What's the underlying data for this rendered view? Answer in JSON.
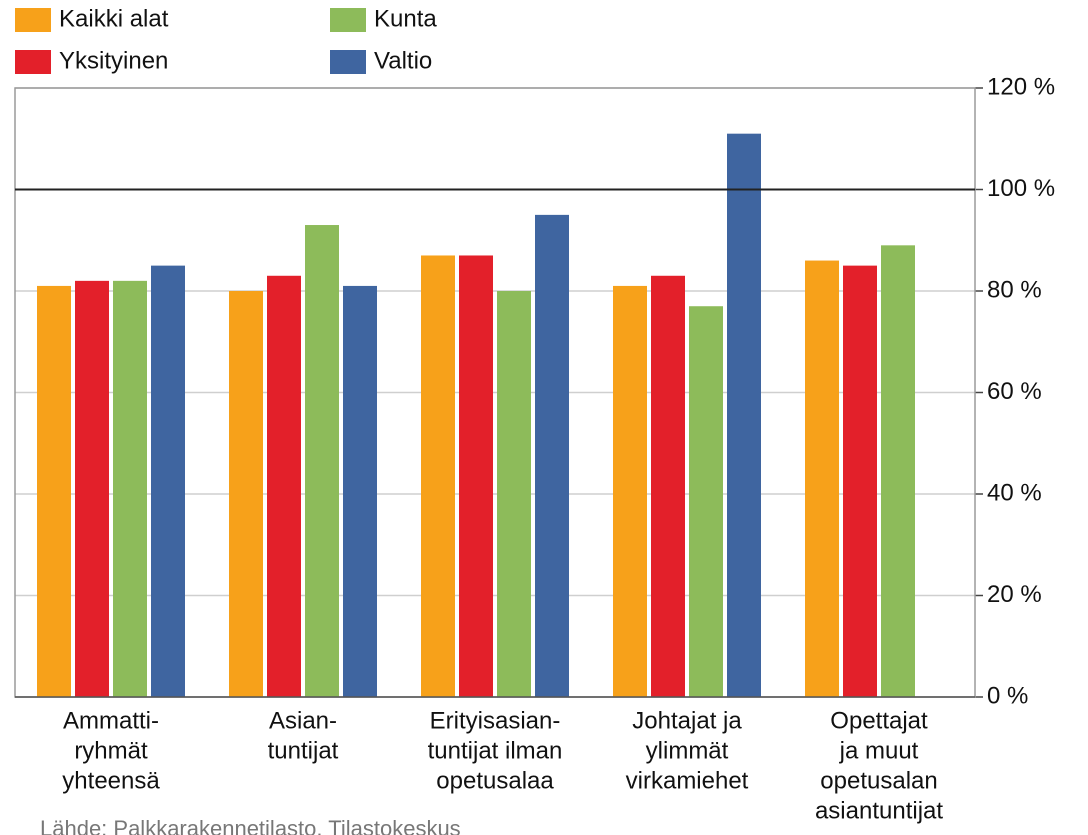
{
  "chart_data": {
    "type": "bar",
    "categories": [
      [
        "Ammatti-",
        "ryhmät",
        "yhteensä"
      ],
      [
        "Asian-",
        "tuntijat"
      ],
      [
        "Erityisasian-",
        "tuntijat ilman",
        "opetusalaa"
      ],
      [
        "Johtajat ja",
        "ylimmät",
        "virkamiehet"
      ],
      [
        "Opettajat",
        "ja muut",
        "opetusalan",
        "asiantuntijat"
      ]
    ],
    "series": [
      {
        "name": "Kaikki alat",
        "color": "#f7a11a",
        "values": [
          81,
          80,
          87,
          81,
          86
        ]
      },
      {
        "name": "Yksityinen",
        "color": "#e3202a",
        "values": [
          82,
          83,
          87,
          83,
          85
        ]
      },
      {
        "name": "Kunta",
        "color": "#8dbb5a",
        "values": [
          82,
          93,
          80,
          77,
          89
        ]
      },
      {
        "name": "Valtio",
        "color": "#3f65a0",
        "values": [
          85,
          81,
          95,
          111,
          null
        ]
      }
    ],
    "ylim": [
      0,
      120
    ],
    "yticks": [
      {
        "value": 0,
        "label": "0 %"
      },
      {
        "value": 20,
        "label": "20 %"
      },
      {
        "value": 40,
        "label": "40 %"
      },
      {
        "value": 60,
        "label": "60 %"
      },
      {
        "value": 80,
        "label": "80 %"
      },
      {
        "value": 100,
        "label": "100 %"
      },
      {
        "value": 120,
        "label": "120 %"
      }
    ],
    "y_axis_side": "right",
    "grid": true,
    "reference_line": 100,
    "legend": "top-left",
    "source": "Lähde: Palkkarakennetilasto, Tilastokeskus"
  }
}
